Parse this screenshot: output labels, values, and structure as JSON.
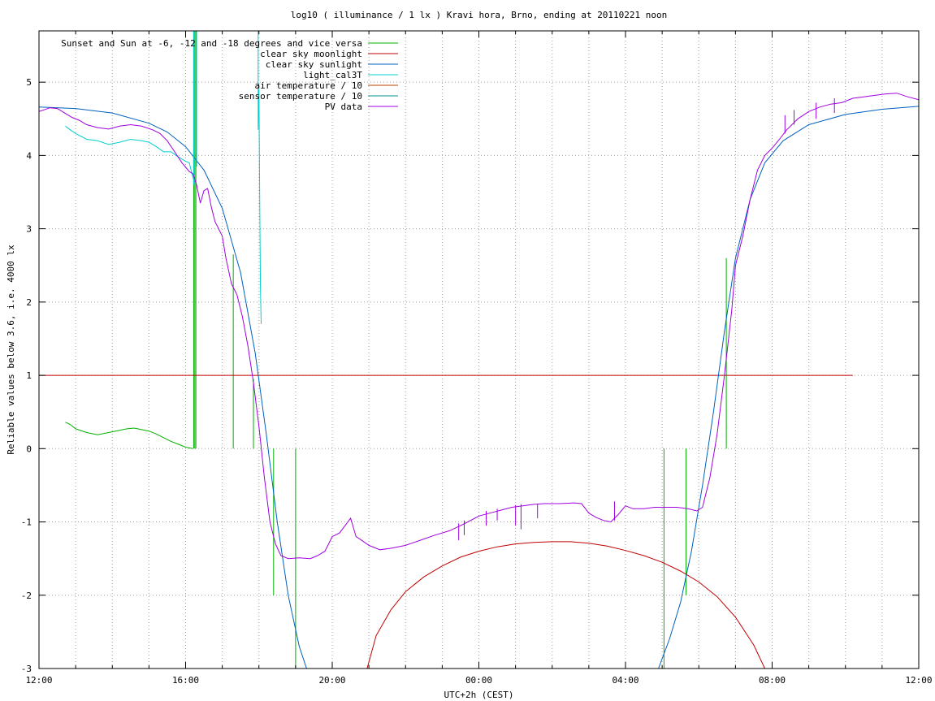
{
  "chart_data": {
    "type": "line",
    "title": "log10 ( illuminance / 1 lx ) Kravi hora, Brno, ending at 20110221 noon",
    "xlabel": "UTC+2h (CEST)",
    "ylabel": "Reliable values below 3.6, i.e. 4000 lx",
    "x_unit": "hours since 12:00",
    "xlim": [
      0,
      24
    ],
    "ylim": [
      -3,
      5.7
    ],
    "grid": true,
    "legend_position": "top-right",
    "x_ticks": [
      {
        "x": 0,
        "label": "12:00"
      },
      {
        "x": 4,
        "label": "16:00"
      },
      {
        "x": 8,
        "label": "20:00"
      },
      {
        "x": 12,
        "label": "00:00"
      },
      {
        "x": 16,
        "label": "04:00"
      },
      {
        "x": 20,
        "label": "08:00"
      },
      {
        "x": 24,
        "label": "12:00"
      }
    ],
    "x_minor_ticks": [
      1,
      2,
      3,
      5,
      6,
      7,
      9,
      10,
      11,
      13,
      14,
      15,
      17,
      18,
      19,
      21,
      22,
      23
    ],
    "y_ticks": [
      {
        "y": -3,
        "label": "-3"
      },
      {
        "y": -2,
        "label": "-2"
      },
      {
        "y": -1,
        "label": "-1"
      },
      {
        "y": 0,
        "label": "0"
      },
      {
        "y": 1,
        "label": "1"
      },
      {
        "y": 2,
        "label": "2"
      },
      {
        "y": 3,
        "label": "3"
      },
      {
        "y": 4,
        "label": "4"
      },
      {
        "y": 5,
        "label": "5"
      }
    ],
    "series": [
      {
        "name": "Sunset and Sun at -6, -12 and -18 degrees and vice versa",
        "color": "#00b000",
        "style": "impulses",
        "points": [
          [
            4.22,
            5.7
          ],
          [
            4.25,
            5.7
          ],
          [
            4.28,
            5.7
          ],
          [
            5.3,
            2.65
          ],
          [
            5.85,
            0.95
          ],
          [
            6.4,
            -2.0
          ],
          [
            7.0,
            -3.0
          ],
          [
            17.05,
            -3.0
          ],
          [
            17.65,
            -2.0
          ],
          [
            18.2,
            0.0
          ],
          [
            18.75,
            2.6
          ]
        ],
        "segments": [
          [
            [
              0.72,
              0.36
            ],
            [
              0.85,
              0.33
            ],
            [
              1.0,
              0.27
            ],
            [
              1.3,
              0.22
            ],
            [
              1.6,
              0.19
            ],
            [
              1.9,
              0.22
            ],
            [
              2.2,
              0.25
            ],
            [
              2.4,
              0.27
            ],
            [
              2.6,
              0.28
            ],
            [
              2.8,
              0.26
            ],
            [
              3.0,
              0.24
            ],
            [
              3.2,
              0.2
            ],
            [
              3.4,
              0.15
            ],
            [
              3.6,
              0.1
            ],
            [
              3.8,
              0.06
            ],
            [
              4.0,
              0.02
            ],
            [
              4.1,
              0.01
            ],
            [
              4.2,
              0.0
            ]
          ]
        ]
      },
      {
        "name": "clear sky moonlight",
        "color": "#c00000",
        "style": "lines",
        "segments": [
          [
            [
              0.0,
              1.0
            ],
            [
              22.2,
              1.0
            ]
          ],
          [
            [
              8.95,
              -3.0
            ],
            [
              9.2,
              -2.55
            ],
            [
              9.6,
              -2.2
            ],
            [
              10.0,
              -1.95
            ],
            [
              10.5,
              -1.75
            ],
            [
              11.0,
              -1.6
            ],
            [
              11.5,
              -1.48
            ],
            [
              12.0,
              -1.4
            ],
            [
              12.5,
              -1.34
            ],
            [
              13.0,
              -1.3
            ],
            [
              13.5,
              -1.28
            ],
            [
              14.0,
              -1.27
            ],
            [
              14.5,
              -1.27
            ],
            [
              15.0,
              -1.29
            ],
            [
              15.5,
              -1.33
            ],
            [
              16.0,
              -1.39
            ],
            [
              16.5,
              -1.46
            ],
            [
              17.0,
              -1.55
            ],
            [
              17.5,
              -1.67
            ],
            [
              18.0,
              -1.82
            ],
            [
              18.5,
              -2.02
            ],
            [
              19.0,
              -2.3
            ],
            [
              19.5,
              -2.68
            ],
            [
              19.8,
              -3.0
            ]
          ]
        ]
      },
      {
        "name": "clear sky sunlight",
        "color": "#0060c0",
        "style": "lines",
        "segments": [
          [
            [
              0.0,
              4.66
            ],
            [
              1.0,
              4.64
            ],
            [
              2.0,
              4.58
            ],
            [
              3.0,
              4.44
            ],
            [
              3.5,
              4.32
            ],
            [
              4.0,
              4.12
            ],
            [
              4.5,
              3.8
            ],
            [
              5.0,
              3.28
            ],
            [
              5.5,
              2.4
            ],
            [
              5.9,
              1.3
            ],
            [
              6.2,
              0.2
            ],
            [
              6.5,
              -1.0
            ],
            [
              6.8,
              -2.0
            ],
            [
              7.1,
              -2.7
            ],
            [
              7.3,
              -3.0
            ]
          ],
          [
            [
              16.9,
              -3.0
            ],
            [
              17.2,
              -2.6
            ],
            [
              17.5,
              -2.1
            ],
            [
              17.8,
              -1.4
            ],
            [
              18.1,
              -0.5
            ],
            [
              18.4,
              0.5
            ],
            [
              18.7,
              1.6
            ],
            [
              19.0,
              2.6
            ],
            [
              19.4,
              3.4
            ],
            [
              19.8,
              3.9
            ],
            [
              20.3,
              4.2
            ],
            [
              21.0,
              4.42
            ],
            [
              22.0,
              4.56
            ],
            [
              23.0,
              4.63
            ],
            [
              24.0,
              4.67
            ]
          ]
        ]
      },
      {
        "name": "light_cal3T",
        "color": "#00d0d0",
        "style": "lines",
        "segments": [
          [
            [
              0.72,
              4.4
            ],
            [
              0.85,
              4.35
            ],
            [
              1.0,
              4.3
            ],
            [
              1.3,
              4.22
            ],
            [
              1.6,
              4.2
            ],
            [
              1.9,
              4.15
            ],
            [
              2.2,
              4.18
            ],
            [
              2.5,
              4.22
            ],
            [
              2.8,
              4.2
            ],
            [
              3.0,
              4.18
            ],
            [
              3.2,
              4.12
            ],
            [
              3.4,
              4.05
            ],
            [
              3.6,
              4.05
            ],
            [
              3.8,
              3.98
            ],
            [
              4.0,
              3.92
            ],
            [
              4.1,
              3.9
            ],
            [
              4.2,
              3.7
            ],
            [
              4.25,
              3.62
            ]
          ],
          [
            [
              4.22,
              5.7
            ],
            [
              4.22,
              3.6
            ]
          ],
          [
            [
              4.3,
              3.85
            ],
            [
              4.3,
              5.7
            ]
          ],
          [
            [
              5.98,
              5.7
            ],
            [
              5.98,
              4.35
            ],
            [
              6.0,
              4.9
            ],
            [
              6.02,
              3.4
            ],
            [
              6.04,
              2.2
            ],
            [
              6.06,
              1.7
            ]
          ]
        ]
      },
      {
        "name": "air temperature / 10",
        "color": "#c04000",
        "style": "lines",
        "segments": []
      },
      {
        "name": "sensor temperature / 10",
        "color": "#009090",
        "style": "lines",
        "segments": []
      },
      {
        "name": "PV data",
        "color": "#a000e0",
        "style": "lines",
        "segments": [
          [
            [
              0.0,
              4.6
            ],
            [
              0.3,
              4.65
            ],
            [
              0.5,
              4.64
            ],
            [
              0.7,
              4.58
            ],
            [
              0.9,
              4.52
            ],
            [
              1.1,
              4.48
            ],
            [
              1.3,
              4.42
            ],
            [
              1.6,
              4.38
            ],
            [
              1.9,
              4.36
            ],
            [
              2.2,
              4.4
            ],
            [
              2.5,
              4.42
            ],
            [
              2.8,
              4.4
            ],
            [
              3.1,
              4.35
            ],
            [
              3.3,
              4.3
            ],
            [
              3.5,
              4.2
            ],
            [
              3.7,
              4.05
            ],
            [
              3.9,
              3.9
            ],
            [
              4.1,
              3.78
            ],
            [
              4.2,
              3.75
            ],
            [
              4.3,
              3.6
            ],
            [
              4.4,
              3.35
            ],
            [
              4.5,
              3.52
            ],
            [
              4.6,
              3.55
            ],
            [
              4.7,
              3.3
            ],
            [
              4.8,
              3.1
            ],
            [
              5.0,
              2.9
            ],
            [
              5.1,
              2.6
            ],
            [
              5.25,
              2.25
            ],
            [
              5.4,
              2.1
            ],
            [
              5.55,
              1.8
            ],
            [
              5.7,
              1.4
            ],
            [
              5.85,
              0.9
            ],
            [
              6.0,
              0.3
            ],
            [
              6.15,
              -0.4
            ],
            [
              6.3,
              -1.0
            ],
            [
              6.45,
              -1.3
            ],
            [
              6.6,
              -1.46
            ],
            [
              6.8,
              -1.5
            ],
            [
              7.1,
              -1.49
            ],
            [
              7.4,
              -1.5
            ],
            [
              7.6,
              -1.46
            ],
            [
              7.8,
              -1.4
            ],
            [
              8.0,
              -1.2
            ],
            [
              8.2,
              -1.15
            ],
            [
              8.35,
              -1.05
            ],
            [
              8.5,
              -0.95
            ],
            [
              8.65,
              -1.2
            ],
            [
              8.8,
              -1.25
            ],
            [
              9.0,
              -1.32
            ],
            [
              9.3,
              -1.38
            ],
            [
              9.6,
              -1.36
            ],
            [
              10.0,
              -1.32
            ],
            [
              10.4,
              -1.25
            ],
            [
              10.8,
              -1.18
            ],
            [
              11.2,
              -1.12
            ],
            [
              11.5,
              -1.05
            ],
            [
              11.7,
              -1.0
            ],
            [
              12.0,
              -0.92
            ],
            [
              12.3,
              -0.88
            ],
            [
              12.6,
              -0.84
            ],
            [
              12.9,
              -0.8
            ],
            [
              13.2,
              -0.78
            ],
            [
              13.5,
              -0.76
            ],
            [
              13.8,
              -0.75
            ],
            [
              14.2,
              -0.75
            ],
            [
              14.6,
              -0.74
            ],
            [
              14.8,
              -0.75
            ],
            [
              15.0,
              -0.88
            ],
            [
              15.2,
              -0.94
            ],
            [
              15.4,
              -0.98
            ],
            [
              15.6,
              -1.0
            ],
            [
              15.8,
              -0.9
            ],
            [
              16.0,
              -0.78
            ],
            [
              16.2,
              -0.82
            ],
            [
              16.5,
              -0.82
            ],
            [
              16.8,
              -0.8
            ],
            [
              17.1,
              -0.8
            ],
            [
              17.4,
              -0.8
            ],
            [
              17.7,
              -0.82
            ],
            [
              17.95,
              -0.85
            ],
            [
              18.1,
              -0.8
            ],
            [
              18.3,
              -0.4
            ],
            [
              18.5,
              0.2
            ],
            [
              18.7,
              1.0
            ],
            [
              18.9,
              1.9
            ],
            [
              19.0,
              2.5
            ],
            [
              19.2,
              2.9
            ],
            [
              19.4,
              3.4
            ],
            [
              19.6,
              3.8
            ],
            [
              19.8,
              4.0
            ],
            [
              20.0,
              4.1
            ],
            [
              20.2,
              4.22
            ],
            [
              20.4,
              4.35
            ],
            [
              20.7,
              4.5
            ],
            [
              21.0,
              4.6
            ],
            [
              21.3,
              4.66
            ],
            [
              21.6,
              4.7
            ],
            [
              21.9,
              4.72
            ],
            [
              22.2,
              4.78
            ],
            [
              22.5,
              4.8
            ],
            [
              22.8,
              4.82
            ],
            [
              23.1,
              4.84
            ],
            [
              23.4,
              4.85
            ],
            [
              23.7,
              4.8
            ],
            [
              24.0,
              4.76
            ]
          ]
        ]
      }
    ],
    "spikes": [
      {
        "series": "PV data",
        "x": 11.45,
        "y_top": -1.02,
        "y_bottom": -1.25
      },
      {
        "series": "PV data",
        "x": 11.6,
        "y_top": -0.98,
        "y_bottom": -1.18
      },
      {
        "series": "PV data",
        "x": 12.2,
        "y_top": -0.85,
        "y_bottom": -1.05
      },
      {
        "series": "PV data",
        "x": 12.5,
        "y_top": -0.82,
        "y_bottom": -0.98
      },
      {
        "series": "PV data",
        "x": 13.0,
        "y_top": -0.77,
        "y_bottom": -1.05
      },
      {
        "series": "PV data",
        "x": 13.15,
        "y_top": -0.76,
        "y_bottom": -1.1
      },
      {
        "series": "PV data",
        "x": 13.6,
        "y_top": -0.75,
        "y_bottom": -0.95
      },
      {
        "series": "PV data",
        "x": 15.7,
        "y_top": -0.72,
        "y_bottom": -0.98
      },
      {
        "series": "PV data",
        "x": 20.35,
        "y_top": 4.55,
        "y_bottom": 4.3
      },
      {
        "series": "PV data",
        "x": 20.6,
        "y_top": 4.62,
        "y_bottom": 4.42
      },
      {
        "series": "PV data",
        "x": 21.2,
        "y_top": 4.72,
        "y_bottom": 4.5
      },
      {
        "series": "PV data",
        "x": 21.7,
        "y_top": 4.78,
        "y_bottom": 4.58
      }
    ]
  }
}
